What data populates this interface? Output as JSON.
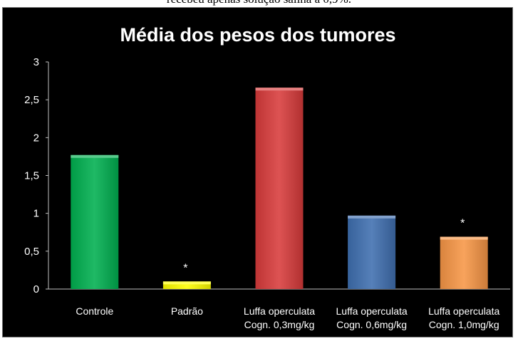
{
  "caption": "recebeu apenas solução salina a 0,9%.",
  "chart_data": {
    "type": "bar",
    "title": "Média dos pesos dos tumores",
    "xlabel": "",
    "ylabel": "",
    "ylim": [
      0,
      3
    ],
    "yticks": [
      "0",
      "0,5",
      "1",
      "1,5",
      "2",
      "2,5",
      "3"
    ],
    "grid": false,
    "legend": "none",
    "categories": [
      [
        "Controle"
      ],
      [
        "Padrão"
      ],
      [
        "Luffa operculata",
        "Cogn. 0,3mg/kg"
      ],
      [
        "Luffa operculata",
        "Cogn. 0,6mg/kg"
      ],
      [
        "Luffa operculata",
        "Cogn. 1,0mg/kg"
      ]
    ],
    "values": [
      1.77,
      0.1,
      2.66,
      0.97,
      0.69
    ],
    "colors": [
      "#00b050",
      "#ffff00",
      "#d83b3b",
      "#3f6fb0",
      "#f79646"
    ],
    "annotations": [
      "",
      "*",
      "",
      "",
      "*"
    ]
  }
}
